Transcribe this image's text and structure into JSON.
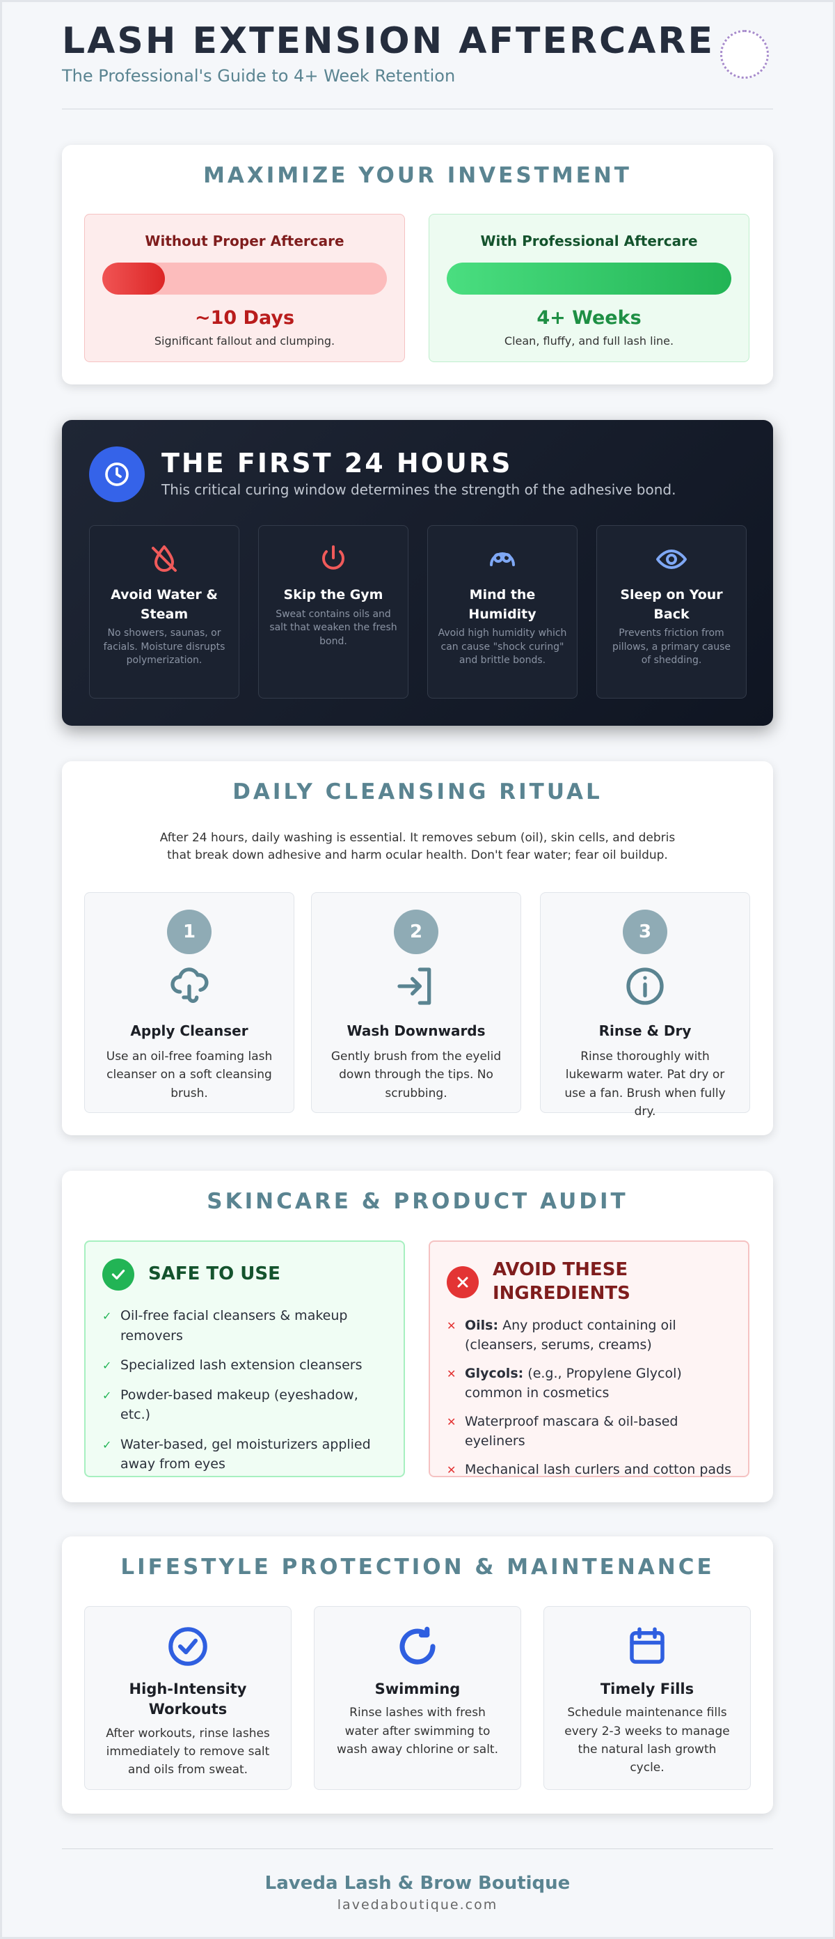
{
  "header": {
    "title": "LASH EXTENSION AFTERCARE",
    "subtitle": "The Professional's Guide to 4+ Week Retention"
  },
  "investment": {
    "title": "MAXIMIZE YOUR INVESTMENT",
    "comparison": [
      {
        "heading": "Without Proper Aftercare",
        "result": "~10 Days",
        "note": "Significant fallout and clumping."
      },
      {
        "heading": "With Professional Aftercare",
        "result": "4+ Weeks",
        "note": "Clean, fluffy, and full lash line."
      }
    ]
  },
  "first_24": {
    "title": "THE FIRST 24 HOURS",
    "subtitle": "This critical curing window determines the strength of the adhesive bond.",
    "items": [
      {
        "title": "Avoid Water & Steam",
        "text": "No showers, saunas, or facials. Moisture disrupts polymerization."
      },
      {
        "title": "Skip the Gym",
        "text": "Sweat contains oils and salt that weaken the fresh bond."
      },
      {
        "title": "Mind the Humidity",
        "text": "Avoid high humidity which can cause \"shock curing\" and brittle bonds."
      },
      {
        "title": "Sleep on Your Back",
        "text": "Prevents friction from pillows, a primary cause of shedding."
      }
    ]
  },
  "cleansing": {
    "title": "DAILY CLEANSING RITUAL",
    "intro": "After 24 hours, daily washing is essential. It removes sebum (oil), skin cells, and debris that break down adhesive and harm ocular health. Don't fear water; fear oil buildup.",
    "steps": [
      {
        "number": "1",
        "title": "Apply Cleanser",
        "text": "Use an oil-free foaming lash cleanser on a soft cleansing brush."
      },
      {
        "number": "2",
        "title": "Wash Downwards",
        "text": "Gently brush from the eyelid down through the tips. No scrubbing."
      },
      {
        "number": "3",
        "title": "Rinse & Dry",
        "text": "Rinse thoroughly with lukewarm water. Pat dry or use a fan. Brush when fully dry."
      }
    ]
  },
  "audit": {
    "title": "SKINCARE & PRODUCT AUDIT",
    "safe": {
      "heading": "SAFE TO USE",
      "items": [
        "Oil-free facial cleansers & makeup removers",
        "Specialized lash extension cleansers",
        "Powder-based makeup (eyeshadow, etc.)",
        "Water-based, gel moisturizers applied away from eyes"
      ]
    },
    "avoid": {
      "heading": "AVOID THESE INGREDIENTS",
      "items": [
        {
          "label": "Oils:",
          "text": "Any product containing oil (cleansers, serums, creams)"
        },
        {
          "label": "Glycols:",
          "text": "(e.g., Propylene Glycol) common in cosmetics"
        },
        {
          "text": "Waterproof mascara & oil-based eyeliners"
        },
        {
          "text": "Mechanical lash curlers and cotton pads"
        }
      ]
    }
  },
  "lifestyle": {
    "title": "LIFESTYLE PROTECTION & MAINTENANCE",
    "items": [
      {
        "title": "High-Intensity Workouts",
        "text": "After workouts, rinse lashes immediately to remove salt and oils from sweat."
      },
      {
        "title": "Swimming",
        "text": "Rinse lashes with fresh water after swimming to wash away chlorine or salt."
      },
      {
        "title": "Timely Fills",
        "text": "Schedule maintenance fills every 2-3 weeks to manage the natural lash growth cycle."
      }
    ]
  },
  "footer": {
    "name": "Laveda Lash & Brow Boutique",
    "url": "lavedaboutique.com"
  }
}
